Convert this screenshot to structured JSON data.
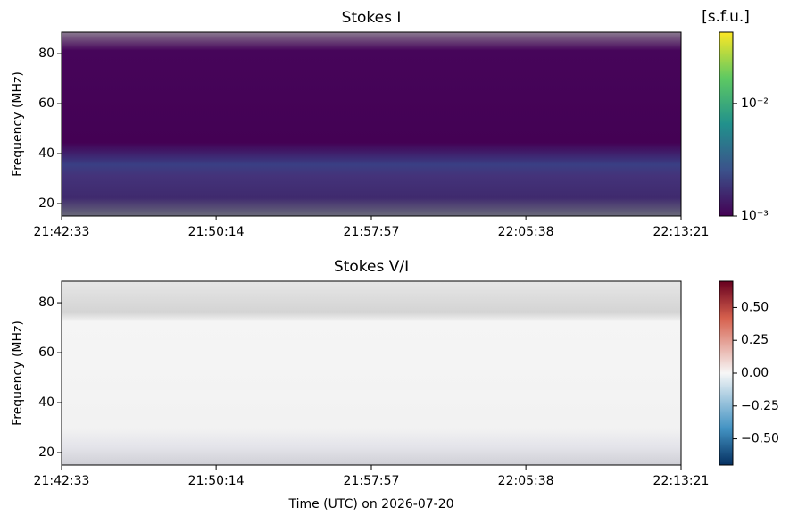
{
  "chart_data": [
    {
      "type": "heatmap",
      "title": "Stokes I",
      "ylabel": "Frequency (MHz)",
      "xlim": [
        78153,
        80001
      ],
      "xticks": [
        {
          "value": 78153,
          "label": "21:42:33"
        },
        {
          "value": 78614,
          "label": "21:50:14"
        },
        {
          "value": 79077,
          "label": "21:57:57"
        },
        {
          "value": 79538,
          "label": "22:05:38"
        },
        {
          "value": 80001,
          "label": "22:13:21"
        }
      ],
      "ylim": [
        15,
        88.6
      ],
      "yticks": [
        20,
        40,
        60,
        80
      ],
      "colorbar": {
        "label": "[s.f.u.]",
        "colormap": "viridis",
        "log": true,
        "clim": [
          0.001,
          0.043
        ],
        "ticks": [
          {
            "value": 0.001,
            "label": "10⁻³"
          },
          {
            "value": 0.01,
            "label": "10⁻²"
          }
        ]
      }
    },
    {
      "type": "heatmap",
      "title": "Stokes V/I",
      "ylabel": "Frequency (MHz)",
      "xlabel": "Time (UTC) on 2026-07-20",
      "xlim": [
        78153,
        80001
      ],
      "xticks": [
        {
          "value": 78153,
          "label": "21:42:33"
        },
        {
          "value": 78614,
          "label": "21:50:14"
        },
        {
          "value": 79077,
          "label": "21:57:57"
        },
        {
          "value": 79538,
          "label": "22:05:38"
        },
        {
          "value": 80001,
          "label": "22:13:21"
        }
      ],
      "ylim": [
        15,
        88.6
      ],
      "yticks": [
        20,
        40,
        60,
        80
      ],
      "colorbar": {
        "colormap": "RdBu_r",
        "log": false,
        "clim": [
          -0.7,
          0.7
        ],
        "ticks": [
          {
            "value": -0.5,
            "label": "−0.50"
          },
          {
            "value": -0.25,
            "label": "−0.25"
          },
          {
            "value": 0,
            "label": "0.00"
          },
          {
            "value": 0.25,
            "label": "0.25"
          },
          {
            "value": 0.5,
            "label": "0.50"
          }
        ]
      }
    }
  ]
}
